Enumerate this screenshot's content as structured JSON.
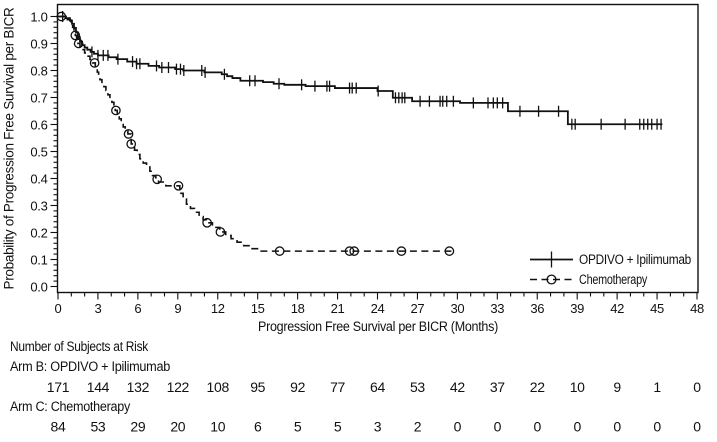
{
  "figure": {
    "background": "#ffffff",
    "ink": "#111111"
  },
  "chart_data": {
    "type": "line",
    "subtype": "kaplan-meier-step-curves",
    "xlabel": "Progression Free Survival per BICR (Months)",
    "ylabel": "Probability of Progression Free Survival per BICR",
    "xlim": [
      0,
      48
    ],
    "ylim": [
      0.0,
      1.0
    ],
    "xticks_major": [
      0,
      3,
      6,
      9,
      12,
      15,
      18,
      21,
      24,
      27,
      30,
      33,
      36,
      39,
      42,
      45,
      48
    ],
    "xtick_minor_step": 1,
    "yticks_major": [
      0.0,
      0.1,
      0.2,
      0.3,
      0.4,
      0.5,
      0.6,
      0.7,
      0.8,
      0.9,
      1.0
    ],
    "ytick_minor_step": 0.02,
    "grid": "off",
    "legend_position": "inside-lower-right",
    "series": [
      {
        "name": "OPDIVO + Ipilimumab",
        "line_style": "solid",
        "marker": "plus-censor",
        "start": [
          0,
          1.0
        ],
        "end_month": 45.4,
        "steps": [
          [
            0.6,
            0.994
          ],
          [
            0.9,
            0.985
          ],
          [
            1.05,
            0.973
          ],
          [
            1.2,
            0.958
          ],
          [
            1.35,
            0.941
          ],
          [
            1.5,
            0.923
          ],
          [
            1.65,
            0.906
          ],
          [
            1.8,
            0.894
          ],
          [
            2.0,
            0.885
          ],
          [
            2.2,
            0.877
          ],
          [
            2.45,
            0.869
          ],
          [
            2.7,
            0.862
          ],
          [
            3.0,
            0.856
          ],
          [
            3.8,
            0.849
          ],
          [
            4.4,
            0.842
          ],
          [
            5.2,
            0.833
          ],
          [
            5.9,
            0.825
          ],
          [
            6.8,
            0.817
          ],
          [
            7.6,
            0.811
          ],
          [
            8.8,
            0.805
          ],
          [
            9.4,
            0.8
          ],
          [
            11.0,
            0.793
          ],
          [
            12.3,
            0.786
          ],
          [
            12.7,
            0.779
          ],
          [
            13.1,
            0.772
          ],
          [
            13.7,
            0.762
          ],
          [
            15.4,
            0.757
          ],
          [
            16.2,
            0.751
          ],
          [
            17.0,
            0.747
          ],
          [
            18.6,
            0.742
          ],
          [
            20.8,
            0.735
          ],
          [
            24.0,
            0.724
          ],
          [
            25.15,
            0.699
          ],
          [
            26.6,
            0.686
          ],
          [
            30.2,
            0.68
          ],
          [
            33.8,
            0.649
          ],
          [
            38.3,
            0.601
          ]
        ],
        "censor_months": [
          0.35,
          2.55,
          3.0,
          3.4,
          3.75,
          4.5,
          5.6,
          5.9,
          6.15,
          7.4,
          7.8,
          8.3,
          8.9,
          9.2,
          9.45,
          10.8,
          11.05,
          12.5,
          14.4,
          14.8,
          16.6,
          18.3,
          19.3,
          20.2,
          20.4,
          21.9,
          22.1,
          22.4,
          24.05,
          25.35,
          25.6,
          25.85,
          26.05,
          27.2,
          27.9,
          28.7,
          28.9,
          29.2,
          29.7,
          31.2,
          32.3,
          32.7,
          33.0,
          33.4,
          34.7,
          36.1,
          37.6,
          38.6,
          38.85,
          40.8,
          42.6,
          43.7,
          44.0,
          44.3,
          44.6,
          45.0,
          45.3
        ]
      },
      {
        "name": "Chemotherapy",
        "line_style": "dashed",
        "marker": "open-circle",
        "start": [
          0,
          1.0
        ],
        "end_month": 29.6,
        "steps": [
          [
            0.7,
            0.988
          ],
          [
            0.95,
            0.974
          ],
          [
            1.1,
            0.96
          ],
          [
            1.2,
            0.945
          ],
          [
            1.3,
            0.93
          ],
          [
            1.4,
            0.914
          ],
          [
            1.5,
            0.9
          ],
          [
            1.65,
            0.889
          ],
          [
            1.8,
            0.877
          ],
          [
            2.0,
            0.865
          ],
          [
            2.2,
            0.853
          ],
          [
            2.4,
            0.841
          ],
          [
            2.6,
            0.828
          ],
          [
            2.8,
            0.81
          ],
          [
            2.95,
            0.794
          ],
          [
            3.05,
            0.78
          ],
          [
            3.15,
            0.766
          ],
          [
            3.3,
            0.752
          ],
          [
            3.45,
            0.74
          ],
          [
            3.6,
            0.726
          ],
          [
            3.75,
            0.71
          ],
          [
            3.9,
            0.696
          ],
          [
            4.05,
            0.682
          ],
          [
            4.2,
            0.666
          ],
          [
            4.3,
            0.652
          ],
          [
            4.45,
            0.637
          ],
          [
            4.6,
            0.621
          ],
          [
            4.75,
            0.606
          ],
          [
            4.9,
            0.591
          ],
          [
            5.05,
            0.577
          ],
          [
            5.25,
            0.565
          ],
          [
            5.5,
            0.528
          ],
          [
            5.75,
            0.505
          ],
          [
            5.95,
            0.489
          ],
          [
            6.15,
            0.473
          ],
          [
            6.4,
            0.457
          ],
          [
            6.65,
            0.443
          ],
          [
            6.9,
            0.427
          ],
          [
            7.1,
            0.411
          ],
          [
            7.35,
            0.397
          ],
          [
            7.55,
            0.387
          ],
          [
            8.1,
            0.373
          ],
          [
            9.15,
            0.345
          ],
          [
            9.4,
            0.324
          ],
          [
            9.65,
            0.305
          ],
          [
            9.95,
            0.289
          ],
          [
            10.25,
            0.275
          ],
          [
            10.6,
            0.259
          ],
          [
            10.9,
            0.247
          ],
          [
            11.15,
            0.236
          ],
          [
            11.6,
            0.219
          ],
          [
            12.15,
            0.202
          ],
          [
            12.6,
            0.189
          ],
          [
            13.0,
            0.177
          ],
          [
            13.45,
            0.164
          ],
          [
            13.95,
            0.151
          ],
          [
            14.45,
            0.14
          ],
          [
            15.05,
            0.131
          ]
        ],
        "censor_months": [
          0.25,
          1.3,
          1.55,
          2.75,
          4.35,
          5.3,
          5.5,
          7.45,
          9.05,
          11.2,
          12.2,
          16.65,
          21.9,
          22.25,
          25.8,
          29.4
        ]
      }
    ]
  },
  "risk_table": {
    "title": "Number of Subjects at Risk",
    "months": [
      0,
      3,
      6,
      9,
      12,
      15,
      18,
      21,
      24,
      27,
      30,
      33,
      36,
      39,
      42,
      45,
      48
    ],
    "rows": [
      {
        "label": "Arm B: OPDIVO + Ipilimumab",
        "values": [
          171,
          144,
          132,
          122,
          108,
          95,
          92,
          77,
          64,
          53,
          42,
          37,
          22,
          10,
          9,
          1,
          0
        ]
      },
      {
        "label": "Arm C: Chemotherapy",
        "values": [
          84,
          53,
          29,
          20,
          10,
          6,
          5,
          5,
          3,
          2,
          0,
          0,
          0,
          0,
          0,
          0,
          0
        ]
      }
    ]
  }
}
